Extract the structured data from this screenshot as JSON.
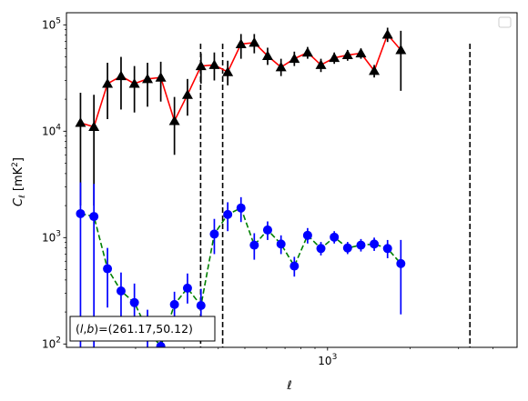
{
  "chart_data": {
    "type": "scatter",
    "xscale": "log",
    "yscale": "log",
    "xlim": [
      112,
      4900
    ],
    "ylim": [
      93,
      130000
    ],
    "xlabel": "ℓ",
    "ylabel": "C_ℓ  [mK²]",
    "ylabel_parts": {
      "main": "C",
      "sub": "ℓ",
      "unit_open": "  [mK",
      "unit_sup": "2",
      "unit_close": "]"
    },
    "x_tick_labels": [
      {
        "value": 1000,
        "base": "10",
        "exp": "3"
      }
    ],
    "y_tick_labels": [
      {
        "value": 100,
        "base": "10",
        "exp": "2"
      },
      {
        "value": 1000,
        "base": "10",
        "exp": "3"
      },
      {
        "value": 10000,
        "base": "10",
        "exp": "4"
      },
      {
        "value": 100000,
        "base": "10",
        "exp": "5"
      }
    ],
    "grid": false,
    "legend": {
      "placement": "top-right",
      "entries": []
    },
    "annotation": {
      "text": "(l,b)=(261.17,50.12)",
      "parts": {
        "open": "(",
        "l": "l",
        "comma": ",",
        "b": "b",
        "rest": ")=(261.17,50.12)"
      },
      "placement": "bottom-left"
    },
    "vlines": [
      {
        "x": 345,
        "style": "dashed",
        "color": "#000000"
      },
      {
        "x": 415,
        "style": "dashed",
        "color": "#000000"
      },
      {
        "x": 3300,
        "style": "dashed",
        "color": "#000000"
      }
    ],
    "series": [
      {
        "marker": "triangle",
        "marker_color": "#000000",
        "line_color": "#ff0000",
        "line_style": "solid",
        "errorbar_color": "#000000",
        "points": [
          {
            "x": 126,
            "y": 12000,
            "lo": 2000,
            "hi": 23000
          },
          {
            "x": 141,
            "y": 11000,
            "lo": 2000,
            "hi": 22000
          },
          {
            "x": 158,
            "y": 28000,
            "lo": 13000,
            "hi": 44000
          },
          {
            "x": 177,
            "y": 33000,
            "lo": 16000,
            "hi": 50000
          },
          {
            "x": 198,
            "y": 28000,
            "lo": 15000,
            "hi": 41000
          },
          {
            "x": 221,
            "y": 31000,
            "lo": 17000,
            "hi": 44000
          },
          {
            "x": 247,
            "y": 32000,
            "lo": 19000,
            "hi": 45000
          },
          {
            "x": 277,
            "y": 12500,
            "lo": 6000,
            "hi": 21000
          },
          {
            "x": 309,
            "y": 22000,
            "lo": 14000,
            "hi": 31000
          },
          {
            "x": 346,
            "y": 41000,
            "lo": 28000,
            "hi": 54000
          },
          {
            "x": 387,
            "y": 42000,
            "lo": 30000,
            "hi": 55000
          },
          {
            "x": 433,
            "y": 36000,
            "lo": 27000,
            "hi": 46000
          },
          {
            "x": 484,
            "y": 66000,
            "lo": 48000,
            "hi": 82000
          },
          {
            "x": 541,
            "y": 68000,
            "lo": 54000,
            "hi": 82000
          },
          {
            "x": 605,
            "y": 51000,
            "lo": 42000,
            "hi": 61000
          },
          {
            "x": 677,
            "y": 40000,
            "lo": 33000,
            "hi": 48000
          },
          {
            "x": 757,
            "y": 48000,
            "lo": 41000,
            "hi": 56000
          },
          {
            "x": 846,
            "y": 55000,
            "lo": 48000,
            "hi": 62000
          },
          {
            "x": 946,
            "y": 42000,
            "lo": 36000,
            "hi": 48000
          },
          {
            "x": 1058,
            "y": 49000,
            "lo": 43000,
            "hi": 55000
          },
          {
            "x": 1183,
            "y": 52000,
            "lo": 46000,
            "hi": 58000
          },
          {
            "x": 1323,
            "y": 54000,
            "lo": 48000,
            "hi": 60000
          },
          {
            "x": 1479,
            "y": 37000,
            "lo": 32000,
            "hi": 42000
          },
          {
            "x": 1654,
            "y": 81000,
            "lo": 69000,
            "hi": 94000
          },
          {
            "x": 1849,
            "y": 58000,
            "lo": 24000,
            "hi": 88000
          }
        ]
      },
      {
        "marker": "circle",
        "marker_color": "#0000ff",
        "line_color": "#008000",
        "line_style": "dashed",
        "errorbar_color": "#0000ff",
        "points": [
          {
            "x": 126,
            "y": 1680,
            "lo": 60,
            "hi": 3300
          },
          {
            "x": 141,
            "y": 1580,
            "lo": 60,
            "hi": 3200
          },
          {
            "x": 158,
            "y": 510,
            "lo": 220,
            "hi": 800
          },
          {
            "x": 177,
            "y": 315,
            "lo": 160,
            "hi": 470
          },
          {
            "x": 198,
            "y": 245,
            "lo": 120,
            "hi": 370
          },
          {
            "x": 221,
            "y": 135,
            "lo": 60,
            "hi": 210
          },
          {
            "x": 247,
            "y": 95,
            "lo": 40,
            "hi": 150
          },
          {
            "x": 277,
            "y": 235,
            "lo": 160,
            "hi": 310
          },
          {
            "x": 309,
            "y": 335,
            "lo": 240,
            "hi": 460
          },
          {
            "x": 346,
            "y": 230,
            "lo": 125,
            "hi": 330
          },
          {
            "x": 387,
            "y": 1080,
            "lo": 700,
            "hi": 1500
          },
          {
            "x": 433,
            "y": 1650,
            "lo": 1150,
            "hi": 2150
          },
          {
            "x": 484,
            "y": 1900,
            "lo": 1400,
            "hi": 2400
          },
          {
            "x": 541,
            "y": 850,
            "lo": 620,
            "hi": 1100
          },
          {
            "x": 605,
            "y": 1180,
            "lo": 950,
            "hi": 1420
          },
          {
            "x": 677,
            "y": 870,
            "lo": 700,
            "hi": 1050
          },
          {
            "x": 757,
            "y": 540,
            "lo": 430,
            "hi": 660
          },
          {
            "x": 846,
            "y": 1050,
            "lo": 880,
            "hi": 1230
          },
          {
            "x": 946,
            "y": 790,
            "lo": 680,
            "hi": 910
          },
          {
            "x": 1058,
            "y": 1010,
            "lo": 880,
            "hi": 1150
          },
          {
            "x": 1183,
            "y": 800,
            "lo": 700,
            "hi": 910
          },
          {
            "x": 1323,
            "y": 850,
            "lo": 740,
            "hi": 970
          },
          {
            "x": 1479,
            "y": 870,
            "lo": 750,
            "hi": 1000
          },
          {
            "x": 1654,
            "y": 790,
            "lo": 640,
            "hi": 950
          },
          {
            "x": 1849,
            "y": 570,
            "lo": 190,
            "hi": 950
          }
        ]
      }
    ]
  }
}
